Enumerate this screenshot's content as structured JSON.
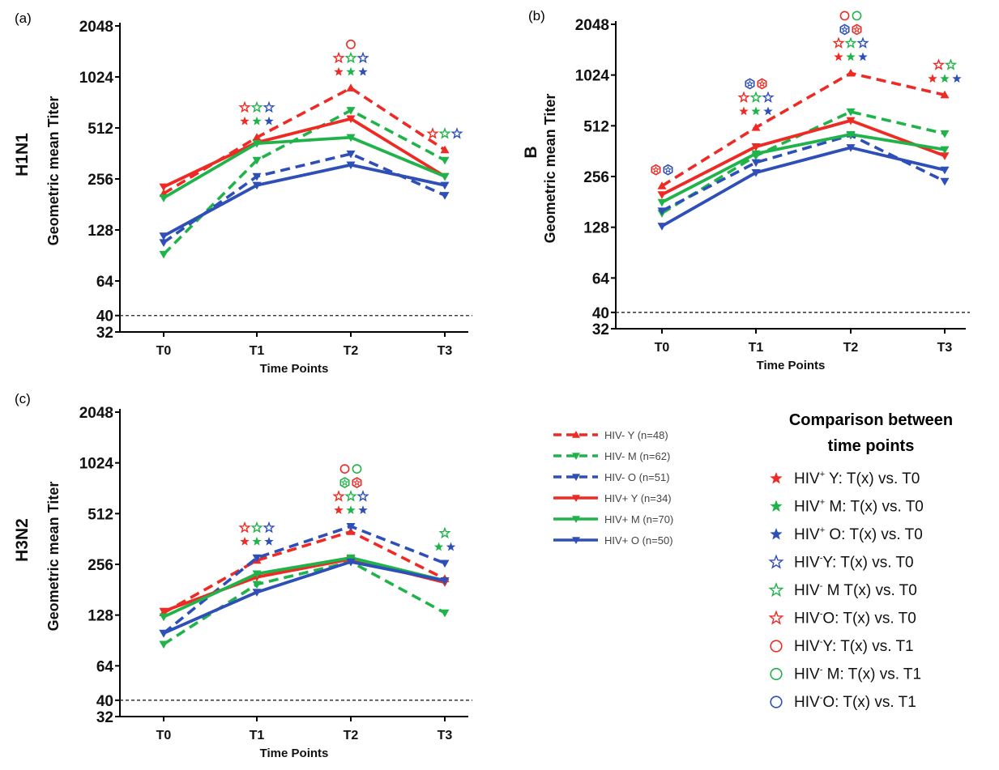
{
  "chart_data": [
    {
      "type": "line",
      "panel_label": "(a)",
      "title": "H1N1",
      "ylabel": "Geometric mean Titer",
      "xlabel": "Time Points",
      "categories": [
        "T0",
        "T1",
        "T2",
        "T3"
      ],
      "y_scale": "log2",
      "ylim": [
        32,
        2048
      ],
      "yticks": [
        "32",
        "40",
        "64",
        "128",
        "256",
        "512",
        "1024",
        "2048"
      ],
      "reference_line": 40,
      "series": [
        {
          "name": "HIV- Y (n=48)",
          "values": [
            210,
            450,
            880,
            380
          ]
        },
        {
          "name": "HIV- M (n=62)",
          "values": [
            92,
            330,
            650,
            330
          ]
        },
        {
          "name": "HIV- O (n=51)",
          "values": [
            108,
            265,
            360,
            205
          ]
        },
        {
          "name": "HIV+ Y (n=34)",
          "values": [
            230,
            420,
            580,
            265
          ]
        },
        {
          "name": "HIV+ M (n=70)",
          "values": [
            198,
            415,
            450,
            265
          ]
        },
        {
          "name": "HIV+ O (n=50)",
          "values": [
            118,
            235,
            310,
            235
          ]
        }
      ],
      "annotations": [
        {
          "x": "T1",
          "rows": [
            [
              "star-open-red",
              "star-open-green",
              "star-open-blue"
            ],
            [
              "star-red",
              "star-green",
              "star-blue"
            ]
          ]
        },
        {
          "x": "T2",
          "rows": [
            [
              "circle-red"
            ],
            [
              "star-open-red",
              "star-open-green",
              "star-open-blue"
            ],
            [
              "star-red",
              "star-green",
              "star-blue"
            ]
          ]
        },
        {
          "x": "T3",
          "rows": [
            [
              "star-open-red",
              "star-open-green",
              "star-open-blue"
            ]
          ]
        }
      ]
    },
    {
      "type": "line",
      "panel_label": "(b)",
      "title": "B",
      "ylabel": "Geometric mean Titer",
      "xlabel": "Time Points",
      "categories": [
        "T0",
        "T1",
        "T2",
        "T3"
      ],
      "y_scale": "log2",
      "ylim": [
        32,
        2048
      ],
      "yticks": [
        "32",
        "40",
        "64",
        "128",
        "256",
        "512",
        "1024",
        "2048"
      ],
      "reference_line": 40,
      "series": [
        {
          "name": "HIV- Y (n=48)",
          "values": [
            225,
            500,
            1050,
            780
          ]
        },
        {
          "name": "HIV- M (n=62)",
          "values": [
            155,
            340,
            620,
            460
          ]
        },
        {
          "name": "HIV- O (n=51)",
          "values": [
            160,
            310,
            450,
            240
          ]
        },
        {
          "name": "HIV+ Y (n=34)",
          "values": [
            200,
            385,
            550,
            340
          ]
        },
        {
          "name": "HIV+ M (n=70)",
          "values": [
            180,
            350,
            455,
            370
          ]
        },
        {
          "name": "HIV+ O (n=50)",
          "values": [
            130,
            270,
            380,
            280
          ]
        }
      ],
      "annotations": [
        {
          "x": "T0",
          "rows": [
            [
              "hex-red",
              "hex-blue"
            ]
          ]
        },
        {
          "x": "T1",
          "rows": [
            [
              "hex-blue",
              "hex-red"
            ],
            [
              "star-open-red",
              "star-open-green",
              "star-open-blue"
            ],
            [
              "star-red",
              "star-green",
              "star-blue"
            ]
          ]
        },
        {
          "x": "T2",
          "rows": [
            [
              "circle-red",
              "circle-green"
            ],
            [
              "hex-blue",
              "hex-red"
            ],
            [
              "star-open-red",
              "star-open-green",
              "star-open-blue"
            ],
            [
              "star-red",
              "star-green",
              "star-blue"
            ]
          ]
        },
        {
          "x": "T3",
          "rows": [
            [
              "star-open-red",
              "star-open-green"
            ],
            [
              "star-red",
              "star-green",
              "star-blue"
            ]
          ]
        }
      ]
    },
    {
      "type": "line",
      "panel_label": "(c)",
      "title": "H3N2",
      "ylabel": "Geometric mean Titer",
      "xlabel": "Time Points",
      "categories": [
        "T0",
        "T1",
        "T2",
        "T3"
      ],
      "y_scale": "log2",
      "ylim": [
        32,
        2048
      ],
      "yticks": [
        "32",
        "40",
        "64",
        "128",
        "256",
        "512",
        "1024",
        "2048"
      ],
      "reference_line": 40,
      "series": [
        {
          "name": "HIV- Y (n=48)",
          "values": [
            132,
            270,
            400,
            210
          ]
        },
        {
          "name": "HIV- M (n=62)",
          "values": [
            86,
            195,
            265,
            132
          ]
        },
        {
          "name": "HIV- O (n=51)",
          "values": [
            100,
            280,
            430,
            260
          ]
        },
        {
          "name": "HIV+ Y (n=34)",
          "values": [
            135,
            215,
            275,
            200
          ]
        },
        {
          "name": "HIV+ M (n=70)",
          "values": [
            125,
            225,
            280,
            205
          ]
        },
        {
          "name": "HIV+ O (n=50)",
          "values": [
            100,
            175,
            265,
            205
          ]
        }
      ],
      "annotations": [
        {
          "x": "T1",
          "rows": [
            [
              "star-open-red",
              "star-open-green",
              "star-open-blue"
            ],
            [
              "star-red",
              "star-green",
              "star-blue"
            ]
          ]
        },
        {
          "x": "T2",
          "rows": [
            [
              "circle-red",
              "circle-green"
            ],
            [
              "hex-green",
              "hex-red"
            ],
            [
              "star-open-red",
              "star-open-green",
              "star-open-blue"
            ],
            [
              "star-red",
              "star-green",
              "star-blue"
            ]
          ]
        },
        {
          "x": "T3",
          "rows": [
            [
              "star-open-green"
            ],
            [
              "star-green",
              "star-blue"
            ]
          ]
        }
      ]
    }
  ],
  "series_styles": [
    {
      "color": "#ee2a24",
      "dash": true,
      "marker": "triangle-up"
    },
    {
      "color": "#20b34a",
      "dash": true,
      "marker": "triangle-down"
    },
    {
      "color": "#2e4fb8",
      "dash": true,
      "marker": "triangle-down"
    },
    {
      "color": "#ee2a24",
      "dash": false,
      "marker": "triangle-down"
    },
    {
      "color": "#20b34a",
      "dash": false,
      "marker": "triangle-down"
    },
    {
      "color": "#2e4fb8",
      "dash": false,
      "marker": "triangle-down"
    }
  ],
  "colors": {
    "red": "#ee2a24",
    "green": "#20b34a",
    "blue": "#2e4fb8"
  },
  "legend": {
    "entries": [
      {
        "label": "HIV- Y (n=48)"
      },
      {
        "label": "HIV- M (n=62)"
      },
      {
        "label": "HIV- O (n=51)"
      },
      {
        "label": "HIV+ Y (n=34)"
      },
      {
        "label": "HIV+ M (n=70)"
      },
      {
        "label": "HIV+ O (n=50)"
      }
    ]
  },
  "comparison_legend": {
    "title_line1": "Comparison between",
    "title_line2": "time points",
    "items": [
      {
        "symbol": "star-red",
        "prefix": "HIV",
        "sup": "+",
        "rest": " Y: T(x) vs. T0"
      },
      {
        "symbol": "star-green",
        "prefix": "HIV",
        "sup": "+",
        "rest": " M: T(x) vs. T0"
      },
      {
        "symbol": "star-blue",
        "prefix": "HIV",
        "sup": "+",
        "rest": " O: T(x) vs. T0"
      },
      {
        "symbol": "star-open-blue",
        "prefix": "HIV",
        "sup": "-",
        "rest": "Y: T(x) vs. T0"
      },
      {
        "symbol": "star-open-green",
        "prefix": "HIV",
        "sup": "-",
        "rest": " M T(x) vs. T0"
      },
      {
        "symbol": "star-open-red",
        "prefix": "HIV",
        "sup": "-",
        "rest": "O: T(x) vs. T0"
      },
      {
        "symbol": "circle-red",
        "prefix": "HIV",
        "sup": "-",
        "rest": "Y: T(x) vs. T1"
      },
      {
        "symbol": "circle-green",
        "prefix": "HIV",
        "sup": "-",
        "rest": " M: T(x) vs. T1"
      },
      {
        "symbol": "circle-blue",
        "prefix": "HIV",
        "sup": "-",
        "rest": "O: T(x) vs. T1"
      }
    ]
  }
}
